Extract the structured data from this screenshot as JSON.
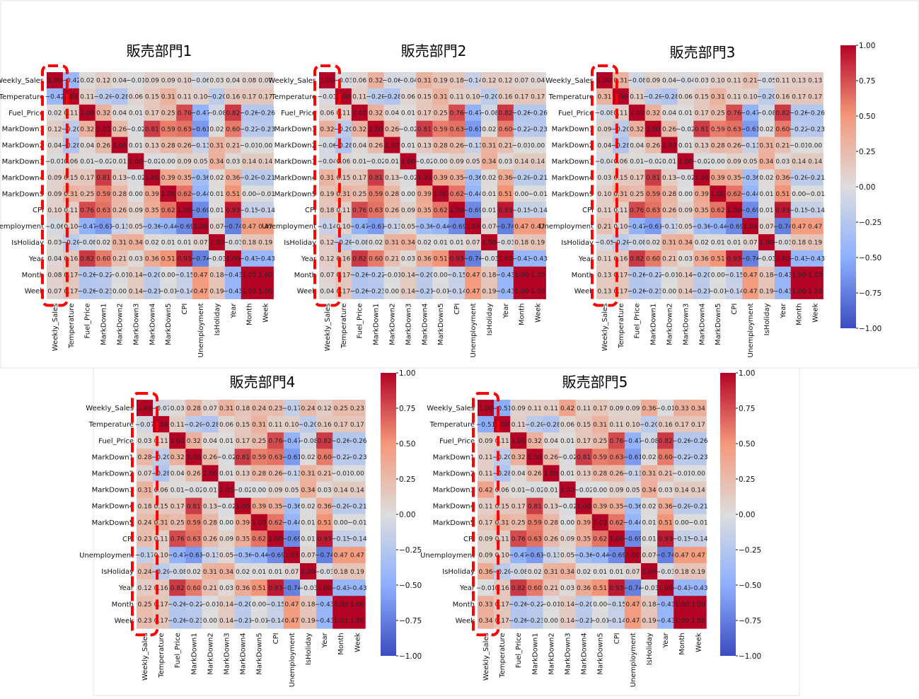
{
  "chart_data": {
    "type": "heatmap",
    "variables": [
      "Weekly_Sales",
      "Temperature",
      "Fuel_Price",
      "MarkDown1",
      "MarkDown2",
      "MarkDown3",
      "MarkDown4",
      "MarkDown5",
      "CPI",
      "Unemployment",
      "IsHoliday",
      "Year",
      "Month",
      "Week"
    ],
    "value_range": [
      -1.0,
      1.0
    ],
    "colormap": "coolwarm",
    "colorbar_ticks": [
      "1.00",
      "0.75",
      "0.50",
      "0.25",
      "0.00",
      "−0.25",
      "−0.50",
      "−0.75",
      "−1.00"
    ],
    "highlight_color": "#ff0000",
    "base_matrix": [
      [
        1.0,
        -0.42,
        0.02,
        0.12,
        0.04,
        -0.01,
        0.09,
        0.09,
        0.1,
        -0.06,
        0.03,
        0.04,
        0.08,
        0.07
      ],
      [
        -0.42,
        1.0,
        0.11,
        -0.2,
        -0.28,
        0.06,
        0.15,
        0.31,
        0.11,
        0.1,
        -0.2,
        0.16,
        0.17,
        0.17
      ],
      [
        0.02,
        0.11,
        1.0,
        0.32,
        0.04,
        0.01,
        0.17,
        0.25,
        0.76,
        -0.47,
        -0.08,
        0.82,
        -0.26,
        -0.26
      ],
      [
        0.12,
        -0.2,
        0.32,
        1.0,
        0.26,
        -0.02,
        0.81,
        0.59,
        0.63,
        -0.61,
        0.02,
        0.6,
        -0.22,
        -0.23
      ],
      [
        0.04,
        -0.28,
        0.04,
        0.26,
        1.0,
        0.01,
        0.13,
        0.28,
        0.26,
        -0.13,
        0.31,
        0.21,
        -0.01,
        0.0
      ],
      [
        -0.01,
        0.06,
        0.01,
        -0.02,
        0.01,
        1.0,
        -0.02,
        0.0,
        0.09,
        0.05,
        0.34,
        0.03,
        0.14,
        0.14
      ],
      [
        0.09,
        0.15,
        0.17,
        0.81,
        0.13,
        -0.02,
        1.0,
        0.39,
        0.35,
        -0.36,
        0.02,
        0.36,
        -0.2,
        -0.21
      ],
      [
        0.09,
        0.31,
        0.25,
        0.59,
        0.28,
        0.0,
        0.39,
        1.0,
        0.62,
        -0.44,
        0.01,
        0.51,
        -0.0,
        -0.01
      ],
      [
        0.1,
        0.11,
        0.76,
        0.63,
        0.26,
        0.09,
        0.35,
        0.62,
        1.0,
        -0.69,
        0.01,
        0.93,
        -0.15,
        -0.14
      ],
      [
        -0.06,
        0.1,
        -0.47,
        -0.61,
        -0.13,
        0.05,
        -0.36,
        -0.44,
        -0.69,
        1.0,
        0.07,
        -0.74,
        0.47,
        0.47
      ],
      [
        0.03,
        -0.2,
        -0.08,
        0.02,
        0.31,
        0.34,
        0.02,
        0.01,
        0.01,
        0.07,
        1.0,
        -0.03,
        0.18,
        0.19
      ],
      [
        0.04,
        0.16,
        0.82,
        0.6,
        0.21,
        0.03,
        0.36,
        0.51,
        0.93,
        -0.74,
        -0.03,
        1.0,
        -0.43,
        -0.43
      ],
      [
        0.08,
        0.17,
        -0.26,
        -0.22,
        -0.01,
        0.14,
        -0.2,
        -0.0,
        -0.15,
        0.47,
        0.18,
        -0.43,
        1.0,
        1.0
      ],
      [
        0.07,
        0.17,
        -0.26,
        -0.23,
        0.0,
        0.14,
        -0.21,
        -0.01,
        -0.14,
        0.47,
        0.19,
        -0.43,
        1.0,
        1.0
      ]
    ],
    "panels": [
      {
        "title": "販売部門1",
        "weekly_sales_corr": [
          1.0,
          -0.42,
          0.02,
          0.12,
          0.04,
          -0.01,
          0.09,
          0.09,
          0.1,
          -0.06,
          0.03,
          0.04,
          0.08,
          0.07
        ]
      },
      {
        "title": "販売部門2",
        "weekly_sales_corr": [
          1.0,
          -0.03,
          0.06,
          0.32,
          -0.06,
          -0.04,
          0.31,
          0.19,
          0.18,
          -0.14,
          0.12,
          0.12,
          0.07,
          0.04
        ]
      },
      {
        "title": "販売部門3",
        "weekly_sales_corr": [
          1.0,
          0.31,
          -0.08,
          0.09,
          0.04,
          -0.04,
          0.03,
          0.1,
          0.11,
          0.21,
          -0.05,
          0.11,
          0.13,
          0.13
        ]
      },
      {
        "title": "販売部門4",
        "weekly_sales_corr": [
          1.0,
          -0.07,
          0.03,
          0.28,
          0.07,
          0.31,
          0.18,
          0.24,
          0.23,
          -0.17,
          0.24,
          0.12,
          0.25,
          0.23
        ]
      },
      {
        "title": "販売部門5",
        "weekly_sales_corr": [
          1.0,
          -0.51,
          0.09,
          0.11,
          0.11,
          0.42,
          0.11,
          0.17,
          0.09,
          0.09,
          0.36,
          -0.01,
          0.33,
          0.34
        ]
      }
    ]
  }
}
